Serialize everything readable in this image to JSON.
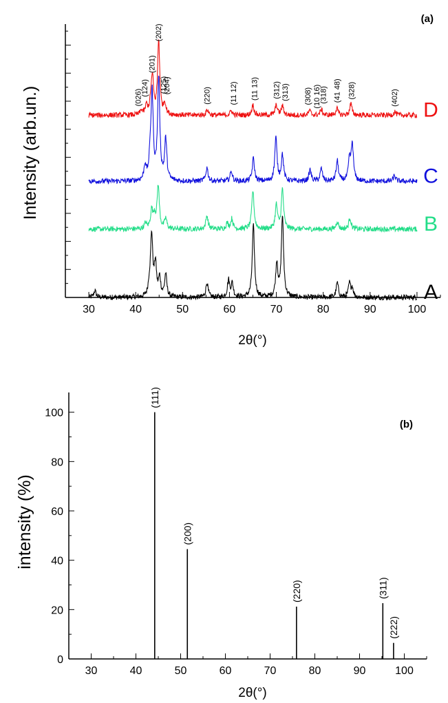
{
  "chart_data": [
    {
      "type": "line",
      "panel_label": "(a)",
      "xlabel": "2θ(°)",
      "ylabel": "Intensity (arb.un.)",
      "xlim": [
        25,
        105
      ],
      "x_ticks": [
        30,
        40,
        50,
        60,
        70,
        80,
        90,
        100
      ],
      "y_ticks": "unlabeled",
      "grid": false,
      "legend": "none",
      "series": [
        {
          "name": "A",
          "color": "#000000",
          "baseline": 0,
          "peaks": [
            [
              31.3,
              0.6
            ],
            [
              42.9,
              0.9
            ],
            [
              43.4,
              5.4
            ],
            [
              44.2,
              2.8
            ],
            [
              45.1,
              1.6
            ],
            [
              46.4,
              2.0
            ],
            [
              55.2,
              1.3
            ],
            [
              59.8,
              1.5
            ],
            [
              60.6,
              1.2
            ],
            [
              65.1,
              6.3
            ],
            [
              70.1,
              3.0
            ],
            [
              71.3,
              7.1
            ],
            [
              83.0,
              1.3
            ],
            [
              85.6,
              1.2
            ],
            [
              86.2,
              0.8
            ]
          ]
        },
        {
          "name": "B",
          "color": "#22dd88",
          "baseline": 6.0,
          "peaks": [
            [
              42.1,
              0.5
            ],
            [
              43.4,
              1.6
            ],
            [
              44.0,
              1.1
            ],
            [
              44.8,
              3.8
            ],
            [
              46.4,
              0.9
            ],
            [
              55.2,
              1.2
            ],
            [
              59.5,
              0.5
            ],
            [
              60.5,
              0.9
            ],
            [
              65.0,
              3.4
            ],
            [
              70.0,
              2.1
            ],
            [
              71.3,
              3.5
            ],
            [
              83.0,
              0.7
            ],
            [
              85.7,
              1.0
            ]
          ]
        },
        {
          "name": "C",
          "color": "#1010dd",
          "baseline": 10.2,
          "peaks": [
            [
              42.0,
              1.3
            ],
            [
              43.1,
              1.6
            ],
            [
              43.5,
              7.4
            ],
            [
              44.9,
              9.0
            ],
            [
              46.4,
              3.6
            ],
            [
              55.2,
              1.2
            ],
            [
              60.4,
              0.9
            ],
            [
              65.1,
              2.0
            ],
            [
              69.9,
              3.8
            ],
            [
              71.3,
              2.3
            ],
            [
              77.2,
              1.0
            ],
            [
              79.6,
              1.1
            ],
            [
              83.0,
              1.8
            ],
            [
              85.6,
              1.8
            ],
            [
              86.2,
              3.2
            ],
            [
              95.2,
              0.5
            ]
          ]
        },
        {
          "name": "D",
          "color": "#ee1111",
          "baseline": 16.0,
          "peaks": [
            [
              41.2,
              0.4
            ],
            [
              42.3,
              0.8
            ],
            [
              43.3,
              1.3
            ],
            [
              43.6,
              2.7
            ],
            [
              44.9,
              6.5
            ],
            [
              46.2,
              1.0
            ],
            [
              55.3,
              0.5
            ],
            [
              60.4,
              0.4
            ],
            [
              65.0,
              0.9
            ],
            [
              70.0,
              0.9
            ],
            [
              71.3,
              0.8
            ],
            [
              77.1,
              0.4
            ],
            [
              79.6,
              0.5
            ],
            [
              82.9,
              0.6
            ],
            [
              85.9,
              1.0
            ],
            [
              95.3,
              0.3
            ]
          ]
        }
      ],
      "annotations": [
        {
          "text": "(026)",
          "x": 40.5
        },
        {
          "text": "(124)",
          "x": 41.9
        },
        {
          "text": "(201)",
          "x": 43.4
        },
        {
          "text": "(202)",
          "x": 44.8
        },
        {
          "text": "(125)",
          "x": 45.9
        },
        {
          "text": "(204)",
          "x": 46.6
        },
        {
          "text": "(220)",
          "x": 55.2
        },
        {
          "text": "(11 12)",
          "x": 60.8
        },
        {
          "text": "(11 13)",
          "x": 65.3
        },
        {
          "text": "(312)",
          "x": 70.0
        },
        {
          "text": "(313)",
          "x": 71.8
        },
        {
          "text": "(308)",
          "x": 76.7
        },
        {
          "text": "(10 16)",
          "x": 78.6
        },
        {
          "text": "(318)",
          "x": 80.0
        },
        {
          "text": "(41 48)",
          "x": 82.9
        },
        {
          "text": "(328)",
          "x": 86.0
        },
        {
          "text": "(402)",
          "x": 95.2
        }
      ]
    },
    {
      "type": "bar",
      "panel_label": "(b)",
      "xlabel": "2θ(°)",
      "ylabel": "intensity (%)",
      "xlim": [
        25,
        105
      ],
      "ylim": [
        0,
        108
      ],
      "x_ticks": [
        30,
        40,
        50,
        60,
        70,
        80,
        90,
        100
      ],
      "y_ticks": [
        0,
        20,
        40,
        60,
        80,
        100
      ],
      "grid": false,
      "legend": "none",
      "color": "#000000",
      "x": [
        44.2,
        51.5,
        75.9,
        95.2,
        97.6
      ],
      "values": [
        100,
        44.5,
        21.2,
        22.6,
        6.5
      ],
      "labels": [
        "(111)",
        "(200)",
        "(220)",
        "(311)",
        "(222)"
      ]
    }
  ]
}
